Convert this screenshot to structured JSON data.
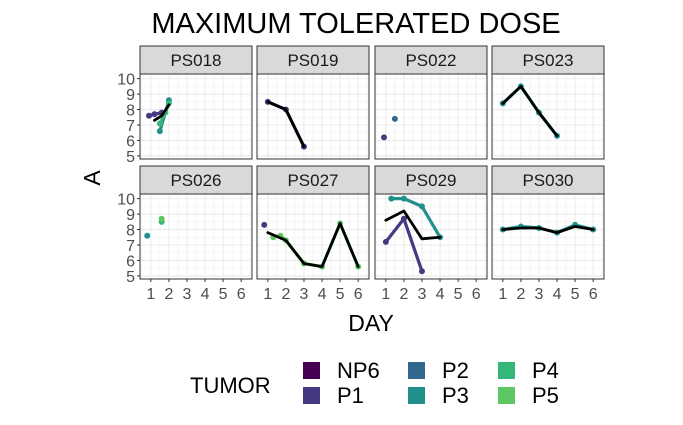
{
  "chart_data": {
    "type": "line",
    "title": "MAXIMUM TOLERATED DOSE",
    "xlabel": "DAY",
    "ylabel": "A",
    "xlim": [
      0.4,
      6.6
    ],
    "ylim": [
      4.8,
      10.3
    ],
    "x_ticks": [
      1,
      2,
      3,
      4,
      5,
      6
    ],
    "y_ticks": [
      5,
      6,
      7,
      8,
      9,
      10
    ],
    "grid": true,
    "legend": {
      "title": "TUMOR",
      "position": "bottom",
      "entries": [
        {
          "name": "NP6",
          "color": "#440154"
        },
        {
          "name": "P1",
          "color": "#443A83"
        },
        {
          "name": "P2",
          "color": "#31688E"
        },
        {
          "name": "P3",
          "color": "#21908C"
        },
        {
          "name": "P4",
          "color": "#35B779"
        },
        {
          "name": "P5",
          "color": "#5DC863"
        }
      ]
    },
    "facets": [
      {
        "label": "PS018",
        "series": [
          {
            "name": "P1",
            "x": [
              0.9,
              1.2,
              1.6
            ],
            "y": [
              7.6,
              7.7,
              7.8
            ]
          },
          {
            "name": "P3",
            "x": [
              1.5,
              2.0
            ],
            "y": [
              6.6,
              8.6
            ]
          },
          {
            "name": "P4",
            "x": [
              1.5,
              1.8,
              2.0
            ],
            "y": [
              7.1,
              7.8,
              8.4
            ]
          }
        ],
        "mean": {
          "x": [
            1.2,
            1.6,
            2.0
          ],
          "y": [
            7.3,
            7.6,
            8.3
          ]
        }
      },
      {
        "label": "PS019",
        "series": [
          {
            "name": "P1",
            "x": [
              1,
              2,
              3
            ],
            "y": [
              8.5,
              8.0,
              5.6
            ]
          }
        ],
        "mean": {
          "x": [
            1,
            2,
            3
          ],
          "y": [
            8.5,
            8.0,
            5.6
          ]
        }
      },
      {
        "label": "PS022",
        "series": [
          {
            "name": "P1",
            "x": [
              0.9
            ],
            "y": [
              6.2
            ]
          },
          {
            "name": "P2",
            "x": [
              1.5
            ],
            "y": [
              7.4
            ]
          }
        ],
        "mean": {
          "x": [],
          "y": []
        }
      },
      {
        "label": "PS023",
        "series": [
          {
            "name": "P3",
            "x": [
              1,
              2,
              3,
              4
            ],
            "y": [
              8.4,
              9.5,
              7.8,
              6.3
            ]
          }
        ],
        "mean": {
          "x": [
            1,
            2,
            3,
            4
          ],
          "y": [
            8.4,
            9.5,
            7.8,
            6.3
          ]
        }
      },
      {
        "label": "PS026",
        "series": [
          {
            "name": "P3",
            "x": [
              0.8
            ],
            "y": [
              7.6
            ]
          },
          {
            "name": "P4",
            "x": [
              1.6
            ],
            "y": [
              8.5
            ]
          },
          {
            "name": "P5",
            "x": [
              1.6
            ],
            "y": [
              8.7
            ]
          }
        ],
        "mean": {
          "x": [],
          "y": []
        }
      },
      {
        "label": "PS027",
        "series": [
          {
            "name": "P1",
            "x": [
              0.8
            ],
            "y": [
              8.3
            ]
          },
          {
            "name": "P5",
            "x": [
              1.3,
              1.7,
              2,
              3,
              4,
              5,
              6
            ],
            "y": [
              7.5,
              7.6,
              7.3,
              5.8,
              5.6,
              8.4,
              5.6
            ]
          }
        ],
        "mean": {
          "x": [
            1,
            2,
            3,
            4,
            5,
            6
          ],
          "y": [
            7.8,
            7.3,
            5.8,
            5.6,
            8.4,
            5.6
          ]
        }
      },
      {
        "label": "PS029",
        "series": [
          {
            "name": "P1",
            "x": [
              1,
              2,
              3
            ],
            "y": [
              7.2,
              8.7,
              5.3
            ]
          },
          {
            "name": "P3",
            "x": [
              1.3,
              2,
              3,
              4
            ],
            "y": [
              10.0,
              10.0,
              9.5,
              7.5
            ]
          }
        ],
        "mean": {
          "x": [
            1,
            2,
            3,
            4
          ],
          "y": [
            8.6,
            9.2,
            7.4,
            7.5
          ]
        }
      },
      {
        "label": "PS030",
        "series": [
          {
            "name": "P3",
            "x": [
              1,
              2,
              3,
              4,
              5,
              6
            ],
            "y": [
              8.0,
              8.2,
              8.1,
              7.8,
              8.3,
              8.0
            ]
          }
        ],
        "mean": {
          "x": [
            1,
            2,
            3,
            4,
            5,
            6
          ],
          "y": [
            8.0,
            8.1,
            8.1,
            7.8,
            8.2,
            8.0
          ]
        }
      }
    ]
  }
}
